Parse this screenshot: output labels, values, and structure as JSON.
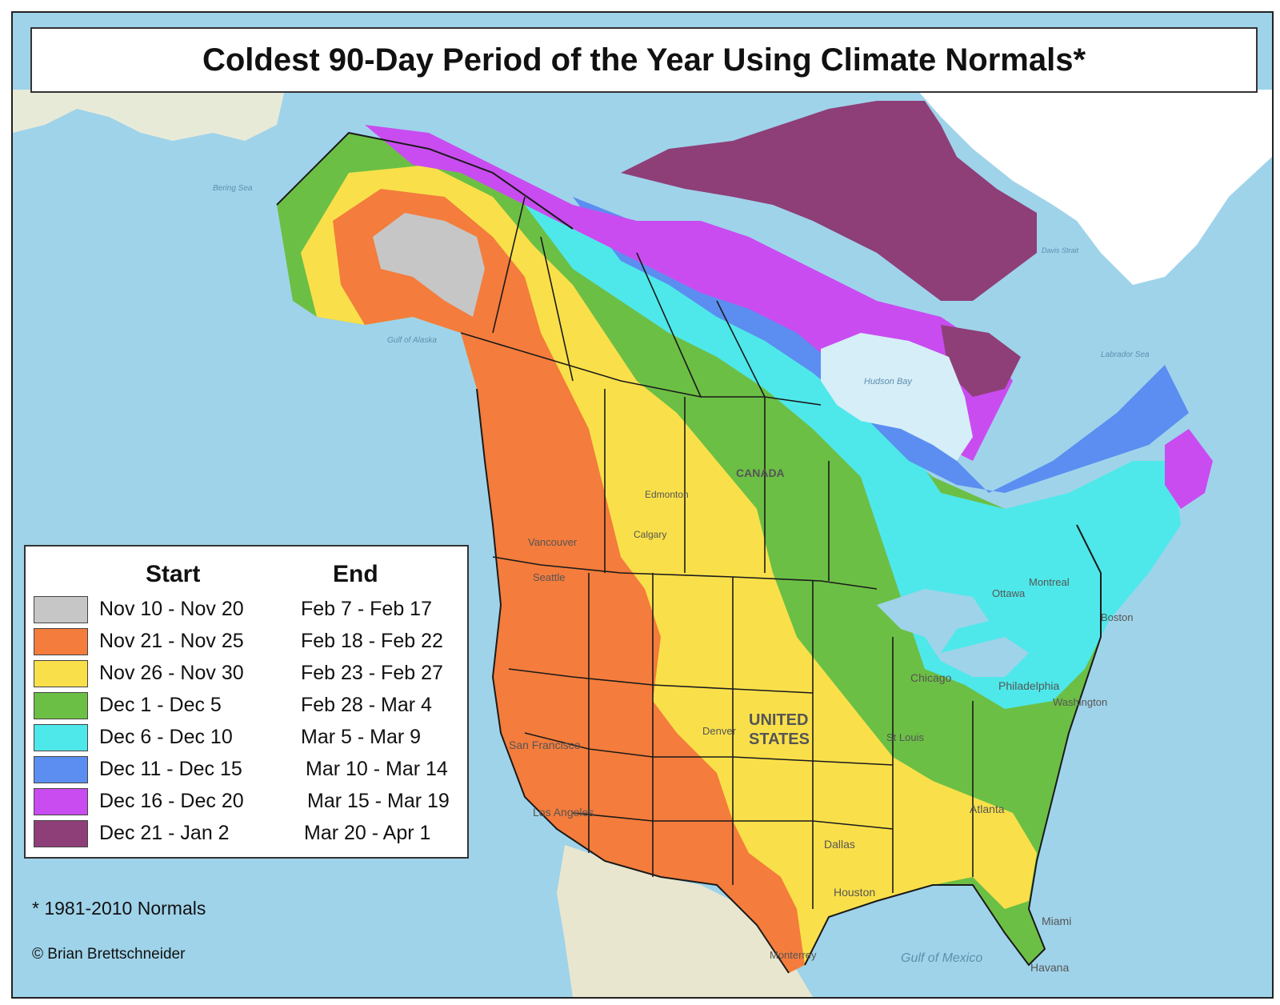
{
  "title": "Coldest 90-Day Period of the Year Using Climate Normals*",
  "legend": {
    "start_header": "Start",
    "end_header": "End",
    "items": [
      {
        "start": "Nov 10 - Nov 20",
        "end": "Feb 7 - Feb 17",
        "color": "#c6c6c6"
      },
      {
        "start": "Nov 21 - Nov 25",
        "end": "Feb 18 - Feb 22",
        "color": "#f47c3c"
      },
      {
        "start": "Nov 26 - Nov 30",
        "end": "Feb 23 - Feb 27",
        "color": "#f9e04a"
      },
      {
        "start": "Dec 1 - Dec 5",
        "end": "Feb 28 - Mar 4",
        "color": "#6cbf45"
      },
      {
        "start": "Dec 6 - Dec 10",
        "end": "Mar 5 - Mar 9",
        "color": "#4ee8ea"
      },
      {
        "start": "Dec 11 - Dec 15",
        "end": "Mar 10 - Mar 14",
        "color": "#5b8ef0"
      },
      {
        "start": "Dec 16 - Dec 20",
        "end": "Mar 15 - Mar 19",
        "color": "#c94cf0"
      },
      {
        "start": "Dec 21 - Jan 2",
        "end": "Mar 20 - Apr 1",
        "color": "#8e3f78"
      }
    ]
  },
  "footnote": "* 1981-2010 Normals",
  "credit": "© Brian Brettschneider",
  "labels": {
    "canada": "CANADA",
    "united": "UNITED",
    "states": "STATES",
    "edmonton": "Edmonton",
    "calgary": "Calgary",
    "vancouver": "Vancouver",
    "seattle": "Seattle",
    "san_francisco": "San Francisco",
    "los_angeles": "Los Angeles",
    "denver": "Denver",
    "chicago": "Chicago",
    "st_louis": "St Louis",
    "dallas": "Dallas",
    "houston": "Houston",
    "atlanta": "Atlanta",
    "miami": "Miami",
    "havana": "Havana",
    "monterrey": "Monterrey",
    "montreal": "Montreal",
    "ottawa": "Ottawa",
    "boston": "Boston",
    "philadelphia": "Philadelphia",
    "washington": "Washington",
    "hudson_bay": "Hudson Bay",
    "labrador_sea": "Labrador Sea",
    "davis_strait": "Davis Strait",
    "gulf_of_alaska": "Gulf of Alaska",
    "bering_sea": "Bering Sea",
    "gulf_of_mexico": "Gulf of Mexico"
  }
}
